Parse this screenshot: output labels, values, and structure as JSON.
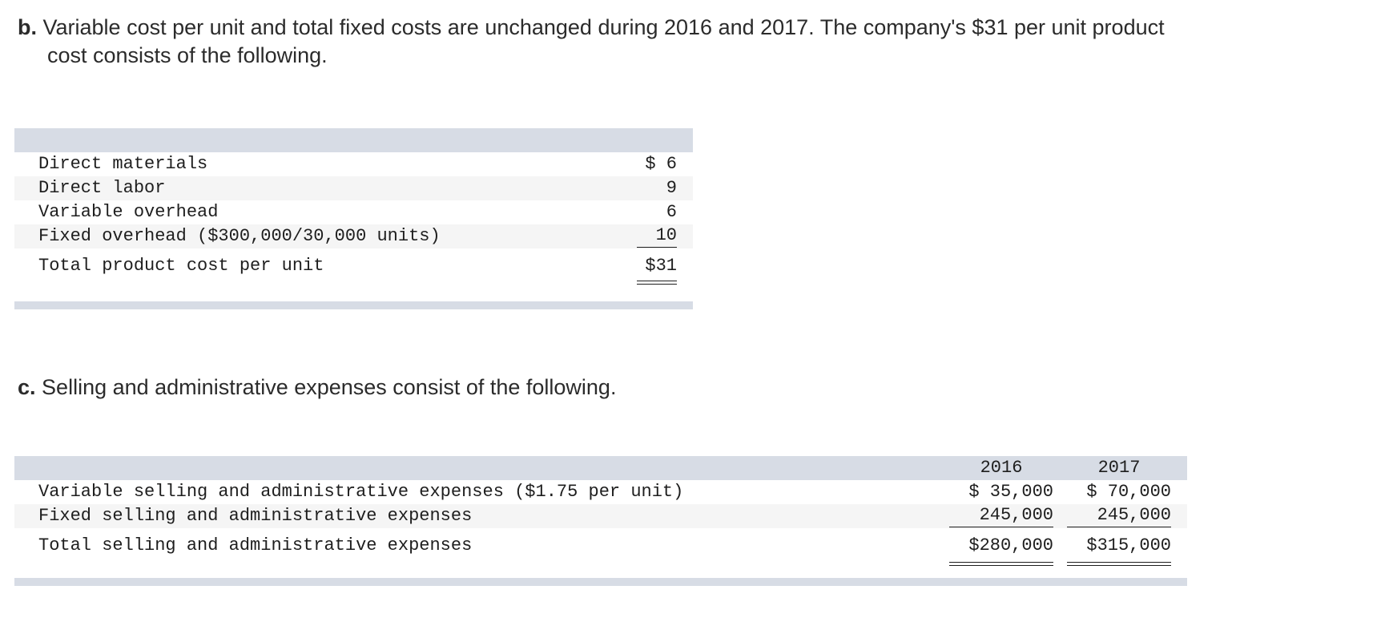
{
  "para_b": {
    "label": "b.",
    "line1": "Variable cost per unit and total fixed costs are unchanged during 2016 and 2017. The company's $31 per unit product",
    "line2": "cost consists of the following."
  },
  "product_cost_table": {
    "rows": [
      {
        "label": "Direct materials",
        "value": "$ 6"
      },
      {
        "label": "Direct labor",
        "value": "9"
      },
      {
        "label": "Variable overhead",
        "value": "6"
      },
      {
        "label": "Fixed overhead ($300,000/30,000 units)",
        "value": "10"
      }
    ],
    "total": {
      "label": "Total product cost per unit",
      "value": "$31"
    }
  },
  "para_c": {
    "label": "c.",
    "text": "Selling and administrative expenses consist of the following."
  },
  "sa_table": {
    "headers": [
      "2016",
      "2017"
    ],
    "rows": [
      {
        "label": "Variable selling and administrative expenses ($1.75 per unit)",
        "y2016": "$ 35,000",
        "y2017": "$ 70,000"
      },
      {
        "label": "Fixed selling and administrative expenses",
        "y2016": "245,000",
        "y2017": "245,000"
      }
    ],
    "total": {
      "label": "Total selling and administrative expenses",
      "y2016": "$280,000",
      "y2017": "$315,000"
    }
  }
}
